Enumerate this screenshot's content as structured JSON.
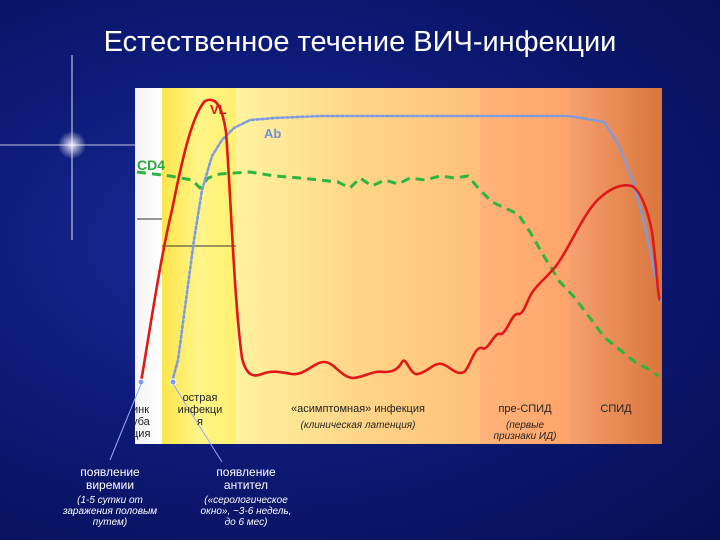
{
  "title": "Естественное течение ВИЧ-инфекции",
  "curves": {
    "cd4": "CD4",
    "vl": "VL",
    "ab": "Ab"
  },
  "phases": {
    "incubation": [
      "инк",
      "уба",
      "ция"
    ],
    "acute": [
      "острая",
      "инфекци",
      "я"
    ],
    "asymptomatic": "«асимптомная» инфекция",
    "asymptomatic_note": "(клиническая латенция)",
    "pre_aids": "пре-СПИД",
    "pre_aids_note": [
      "(первые",
      "признаки ИД)"
    ],
    "aids": "СПИД"
  },
  "annotations": {
    "viremia": [
      "появление",
      "виремии"
    ],
    "viremia_note": [
      "(1-5 сутки от",
      "заражения половым",
      "путем)"
    ],
    "antibodies": [
      "появление",
      "антител"
    ],
    "antibodies_note": [
      "(«серологическое",
      "окно», ~3-6 недель,",
      "до 6 мес)"
    ]
  },
  "colors": {
    "vl": "#e01818",
    "ab": "#7f9be0",
    "cd4": "#2db53e",
    "background": "#0d1a78"
  }
}
